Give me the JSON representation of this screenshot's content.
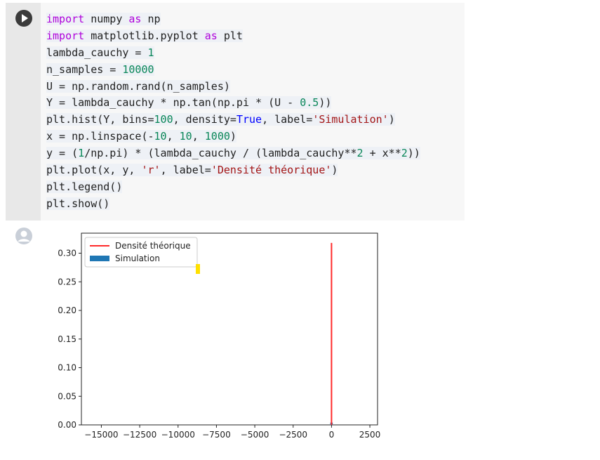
{
  "notebook": {
    "run_icon": "play-icon",
    "code_lines": [
      [
        [
          "import",
          "kw"
        ],
        [
          " numpy ",
          ""
        ],
        [
          "as",
          "kw"
        ],
        [
          " np",
          ""
        ]
      ],
      [
        [
          "import",
          "kw"
        ],
        [
          " matplotlib.pyplot ",
          ""
        ],
        [
          "as",
          "kw"
        ],
        [
          " plt",
          ""
        ]
      ],
      [
        [
          "lambda_cauchy = ",
          ""
        ],
        [
          "1",
          "num"
        ]
      ],
      [
        [
          "n_samples = ",
          ""
        ],
        [
          "10000",
          "num"
        ]
      ],
      [
        [
          "U = np.random.rand(n_samples)",
          ""
        ]
      ],
      [
        [
          "Y = lambda_cauchy * np.tan(np.pi * (U - ",
          ""
        ],
        [
          "0.5",
          "num"
        ],
        [
          "))",
          ""
        ]
      ],
      [
        [
          "plt.hist(Y, bins=",
          ""
        ],
        [
          "100",
          "num"
        ],
        [
          ", density=",
          ""
        ],
        [
          "True",
          "blt"
        ],
        [
          ", label=",
          ""
        ],
        [
          "'Simulation'",
          "str"
        ],
        [
          ")",
          ""
        ]
      ],
      [
        [
          "x = np.linspace(-",
          ""
        ],
        [
          "10",
          "num"
        ],
        [
          ", ",
          ""
        ],
        [
          "10",
          "num"
        ],
        [
          ", ",
          ""
        ],
        [
          "1000",
          "num"
        ],
        [
          ")",
          ""
        ]
      ],
      [
        [
          "y = (",
          ""
        ],
        [
          "1",
          "num"
        ],
        [
          "/np.pi) * (lambda_cauchy / (lambda_cauchy**",
          ""
        ],
        [
          "2",
          "num"
        ],
        [
          " + x**",
          ""
        ],
        [
          "2",
          "num"
        ],
        [
          "))",
          ""
        ]
      ],
      [
        [
          "plt.plot(x, y, ",
          ""
        ],
        [
          "'r'",
          "str"
        ],
        [
          ", label=",
          ""
        ],
        [
          "'Densité théorique'",
          "str"
        ],
        [
          ")",
          ""
        ]
      ],
      [
        [
          "plt.legend()",
          ""
        ]
      ],
      [
        [
          "plt.show()",
          ""
        ]
      ]
    ],
    "output_icon": "user-avatar-icon"
  },
  "chart_data": {
    "type": "bar",
    "title": "",
    "xlabel": "",
    "ylabel": "",
    "xlim": [
      -16300,
      3000
    ],
    "ylim": [
      0,
      0.335
    ],
    "xticks": [
      -15000,
      -12500,
      -10000,
      -7500,
      -5000,
      -2500,
      0,
      2500
    ],
    "xtick_labels": [
      "−15000",
      "−12500",
      "−10000",
      "−7500",
      "−5000",
      "−2500",
      "0",
      "2500"
    ],
    "yticks": [
      0.0,
      0.05,
      0.1,
      0.15,
      0.2,
      0.25,
      0.3
    ],
    "ytick_labels": [
      "0.00",
      "0.05",
      "0.10",
      "0.15",
      "0.20",
      "0.25",
      "0.30"
    ],
    "grid": false,
    "legend_position": "top-left",
    "series": [
      {
        "name": "Densité théorique",
        "type": "line",
        "color": "#ff2a2a",
        "x": [
          0,
          0
        ],
        "y": [
          0.0,
          0.318
        ]
      },
      {
        "name": "Simulation",
        "type": "bar",
        "color": "#1f77b4",
        "bins": [
          {
            "x0": -80,
            "x1": 80,
            "height": 0.004
          }
        ]
      }
    ]
  }
}
